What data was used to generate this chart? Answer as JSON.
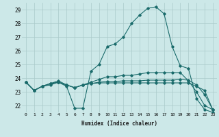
{
  "xlabel": "Humidex (Indice chaleur)",
  "x_ticks": [
    0,
    1,
    2,
    3,
    4,
    5,
    6,
    7,
    8,
    9,
    10,
    11,
    12,
    13,
    14,
    15,
    16,
    17,
    18,
    19,
    20,
    21,
    22,
    23
  ],
  "ylim": [
    21.5,
    29.5
  ],
  "xlim": [
    -0.5,
    23.5
  ],
  "y_ticks": [
    22,
    23,
    24,
    25,
    26,
    27,
    28,
    29
  ],
  "bg_color": "#cce8e8",
  "grid_color": "#aacaca",
  "line_color": "#1a6b6b",
  "series": [
    [
      23.7,
      23.1,
      23.4,
      23.5,
      23.7,
      23.4,
      21.8,
      21.8,
      24.5,
      25.0,
      26.3,
      26.5,
      27.0,
      28.0,
      28.6,
      29.1,
      29.2,
      28.7,
      26.3,
      24.9,
      24.7,
      22.5,
      21.7,
      21.5
    ],
    [
      23.7,
      23.1,
      23.4,
      23.6,
      23.8,
      23.5,
      23.3,
      23.5,
      23.7,
      23.9,
      24.1,
      24.1,
      24.2,
      24.2,
      24.3,
      24.4,
      24.4,
      24.4,
      24.4,
      24.4,
      23.8,
      23.0,
      22.0,
      21.7
    ],
    [
      23.7,
      23.1,
      23.4,
      23.6,
      23.7,
      23.5,
      23.3,
      23.5,
      23.6,
      23.7,
      23.75,
      23.75,
      23.8,
      23.8,
      23.8,
      23.85,
      23.85,
      23.85,
      23.85,
      23.9,
      23.85,
      23.5,
      22.8,
      21.7
    ],
    [
      23.7,
      23.1,
      23.4,
      23.6,
      23.7,
      23.5,
      23.3,
      23.5,
      23.6,
      23.65,
      23.65,
      23.65,
      23.65,
      23.65,
      23.65,
      23.65,
      23.65,
      23.65,
      23.65,
      23.65,
      23.65,
      23.4,
      23.1,
      21.7
    ]
  ]
}
